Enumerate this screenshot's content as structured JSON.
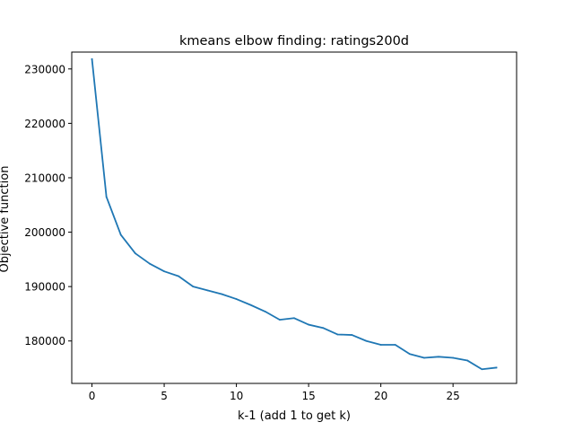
{
  "chart_data": {
    "type": "line",
    "title": "kmeans elbow finding: ratings200d",
    "xlabel": "k-1 (add 1 to get k)",
    "ylabel": "Objective function",
    "xlim": [
      -1.4,
      29.4
    ],
    "ylim": [
      172200,
      233100
    ],
    "grid": false,
    "xticks": [
      0,
      5,
      10,
      15,
      20,
      25
    ],
    "yticks": [
      180000,
      190000,
      200000,
      210000,
      220000,
      230000
    ],
    "series": [
      {
        "color": "#1f77b4",
        "x": [
          0,
          1,
          2,
          3,
          4,
          5,
          6,
          7,
          8,
          9,
          10,
          11,
          12,
          13,
          14,
          15,
          16,
          17,
          18,
          19,
          20,
          21,
          22,
          23,
          24,
          25,
          26,
          27,
          28
        ],
        "values": [
          231800,
          206500,
          199500,
          196100,
          194200,
          192800,
          191900,
          190000,
          189300,
          188600,
          187700,
          186600,
          185400,
          183900,
          184200,
          183000,
          182400,
          181200,
          181100,
          180000,
          179300,
          179300,
          177600,
          176900,
          177100,
          176900,
          176400,
          174800,
          175100
        ]
      }
    ]
  }
}
